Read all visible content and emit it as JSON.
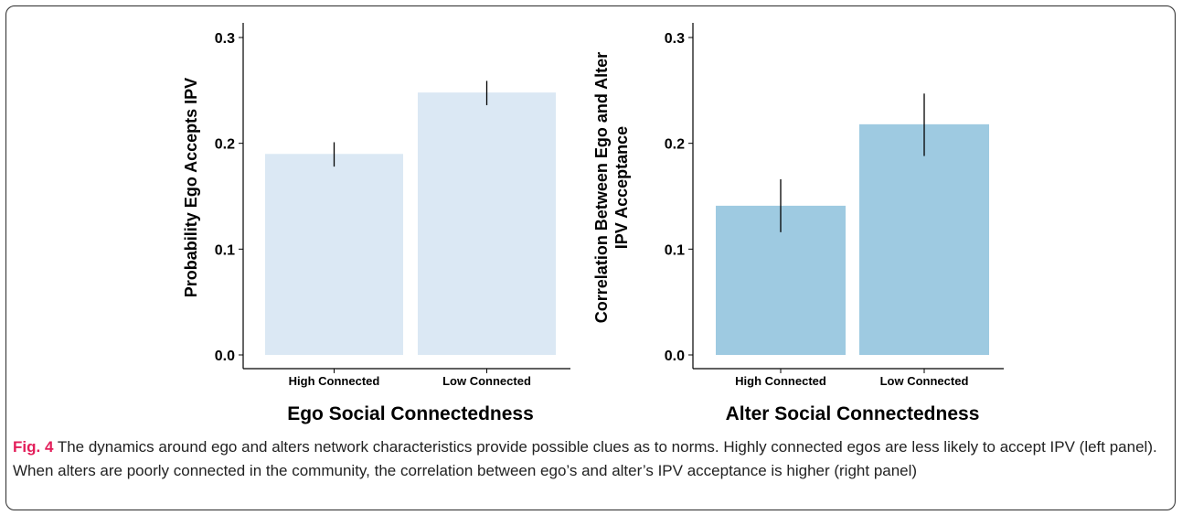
{
  "chart_data": [
    {
      "type": "bar",
      "categories": [
        "High Connected",
        "Low Connected"
      ],
      "values": [
        0.19,
        0.248
      ],
      "error_low": [
        0.178,
        0.236
      ],
      "error_high": [
        0.201,
        0.259
      ],
      "xlabel": "Ego Social Connectedness",
      "ylabel_lines": [
        "Probability Ego Accepts IPV"
      ],
      "ylim": [
        0,
        0.3
      ],
      "yticks": [
        "0.0",
        "0.1",
        "0.2",
        "0.3"
      ],
      "ytick_values": [
        0,
        0.1,
        0.2,
        0.3
      ],
      "bar_color": "#dbe8f4",
      "grid": false
    },
    {
      "type": "bar",
      "categories": [
        "High Connected",
        "Low Connected"
      ],
      "values": [
        0.141,
        0.218
      ],
      "error_low": [
        0.116,
        0.188
      ],
      "error_high": [
        0.166,
        0.247
      ],
      "xlabel": "Alter Social Connectedness",
      "ylabel_lines": [
        "Correlation Between Ego and Alter",
        "IPV Acceptance"
      ],
      "ylim": [
        0,
        0.3
      ],
      "yticks": [
        "0.0",
        "0.1",
        "0.2",
        "0.3"
      ],
      "ytick_values": [
        0,
        0.1,
        0.2,
        0.3
      ],
      "bar_color": "#9ecae1",
      "grid": false
    }
  ],
  "caption": {
    "label": "Fig. 4",
    "text": " The dynamics around ego and alters network characteristics provide possible clues as to norms. Highly connected egos are less likely to accept IPV (left panel). When alters are poorly connected in the community, the correlation between ego’s and alter’s IPV acceptance is higher (right panel)"
  }
}
